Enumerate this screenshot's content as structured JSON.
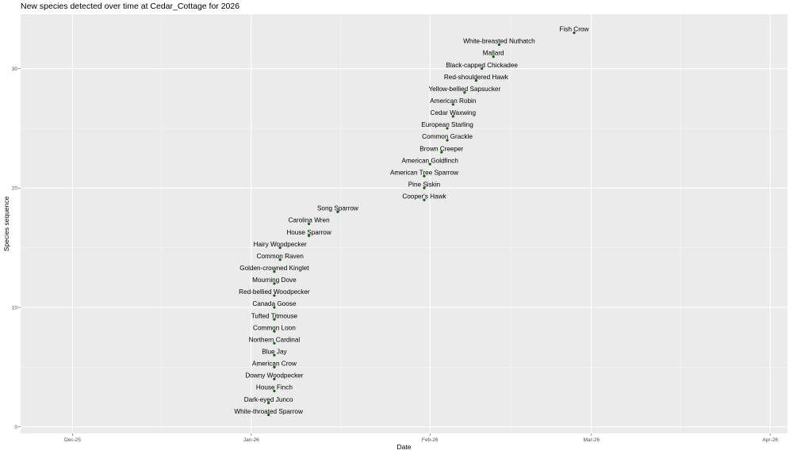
{
  "chart_data": {
    "type": "scatter",
    "title": "New species detected over time at Cedar_Cottage for 2026",
    "xlabel": "Date",
    "ylabel": "Species sequence",
    "xlim": [
      "2025-12-01",
      "2026-04-01"
    ],
    "ylim": [
      0,
      33
    ],
    "x_ticks": [
      {
        "date": "2025-12-01",
        "label": "Dec-25"
      },
      {
        "date": "2026-01-01",
        "label": "Jan-26"
      },
      {
        "date": "2026-02-01",
        "label": "Feb-26"
      },
      {
        "date": "2026-03-01",
        "label": "Mar-26"
      },
      {
        "date": "2026-04-01",
        "label": "Apr-26"
      }
    ],
    "y_ticks": [
      0,
      10,
      20,
      30
    ],
    "grid": true,
    "point_color": "#1a5e1a",
    "panel_color": "#ebebeb",
    "points": [
      {
        "seq": 1,
        "species": "White-throated Sparrow",
        "date": "2026-01-04"
      },
      {
        "seq": 2,
        "species": "Dark-eyed Junco",
        "date": "2026-01-04"
      },
      {
        "seq": 3,
        "species": "House Finch",
        "date": "2026-01-05"
      },
      {
        "seq": 4,
        "species": "Downy Woodpecker",
        "date": "2026-01-05"
      },
      {
        "seq": 5,
        "species": "American Crow",
        "date": "2026-01-05"
      },
      {
        "seq": 6,
        "species": "Blue Jay",
        "date": "2026-01-05"
      },
      {
        "seq": 7,
        "species": "Northern Cardinal",
        "date": "2026-01-05"
      },
      {
        "seq": 8,
        "species": "Common Loon",
        "date": "2026-01-05"
      },
      {
        "seq": 9,
        "species": "Tufted Titmouse",
        "date": "2026-01-05"
      },
      {
        "seq": 10,
        "species": "Canada Goose",
        "date": "2026-01-05"
      },
      {
        "seq": 11,
        "species": "Red-bellied Woodpecker",
        "date": "2026-01-05"
      },
      {
        "seq": 12,
        "species": "Mourning Dove",
        "date": "2026-01-05"
      },
      {
        "seq": 13,
        "species": "Golden-crowned Kinglet",
        "date": "2026-01-05"
      },
      {
        "seq": 14,
        "species": "Common Raven",
        "date": "2026-01-06"
      },
      {
        "seq": 15,
        "species": "Hairy Woodpecker",
        "date": "2026-01-06"
      },
      {
        "seq": 16,
        "species": "House Sparrow",
        "date": "2026-01-11"
      },
      {
        "seq": 17,
        "species": "Carolina Wren",
        "date": "2026-01-11"
      },
      {
        "seq": 18,
        "species": "Song Sparrow",
        "date": "2026-01-16"
      },
      {
        "seq": 19,
        "species": "Cooper's Hawk",
        "date": "2026-01-31"
      },
      {
        "seq": 20,
        "species": "Pine Siskin",
        "date": "2026-01-31"
      },
      {
        "seq": 21,
        "species": "American Tree Sparrow",
        "date": "2026-01-31"
      },
      {
        "seq": 22,
        "species": "American Goldfinch",
        "date": "2026-02-01"
      },
      {
        "seq": 23,
        "species": "Brown Creeper",
        "date": "2026-02-03"
      },
      {
        "seq": 24,
        "species": "Common Grackle",
        "date": "2026-02-04"
      },
      {
        "seq": 25,
        "species": "European Starling",
        "date": "2026-02-04"
      },
      {
        "seq": 26,
        "species": "Cedar Waxwing",
        "date": "2026-02-05"
      },
      {
        "seq": 27,
        "species": "American Robin",
        "date": "2026-02-05"
      },
      {
        "seq": 28,
        "species": "Yellow-bellied Sapsucker",
        "date": "2026-02-07"
      },
      {
        "seq": 29,
        "species": "Red-shouldered Hawk",
        "date": "2026-02-09"
      },
      {
        "seq": 30,
        "species": "Black-capped Chickadee",
        "date": "2026-02-10"
      },
      {
        "seq": 31,
        "species": "Mallard",
        "date": "2026-02-12"
      },
      {
        "seq": 32,
        "species": "White-breasted Nuthatch",
        "date": "2026-02-13"
      },
      {
        "seq": 33,
        "species": "Fish Crow",
        "date": "2026-02-26"
      }
    ]
  }
}
